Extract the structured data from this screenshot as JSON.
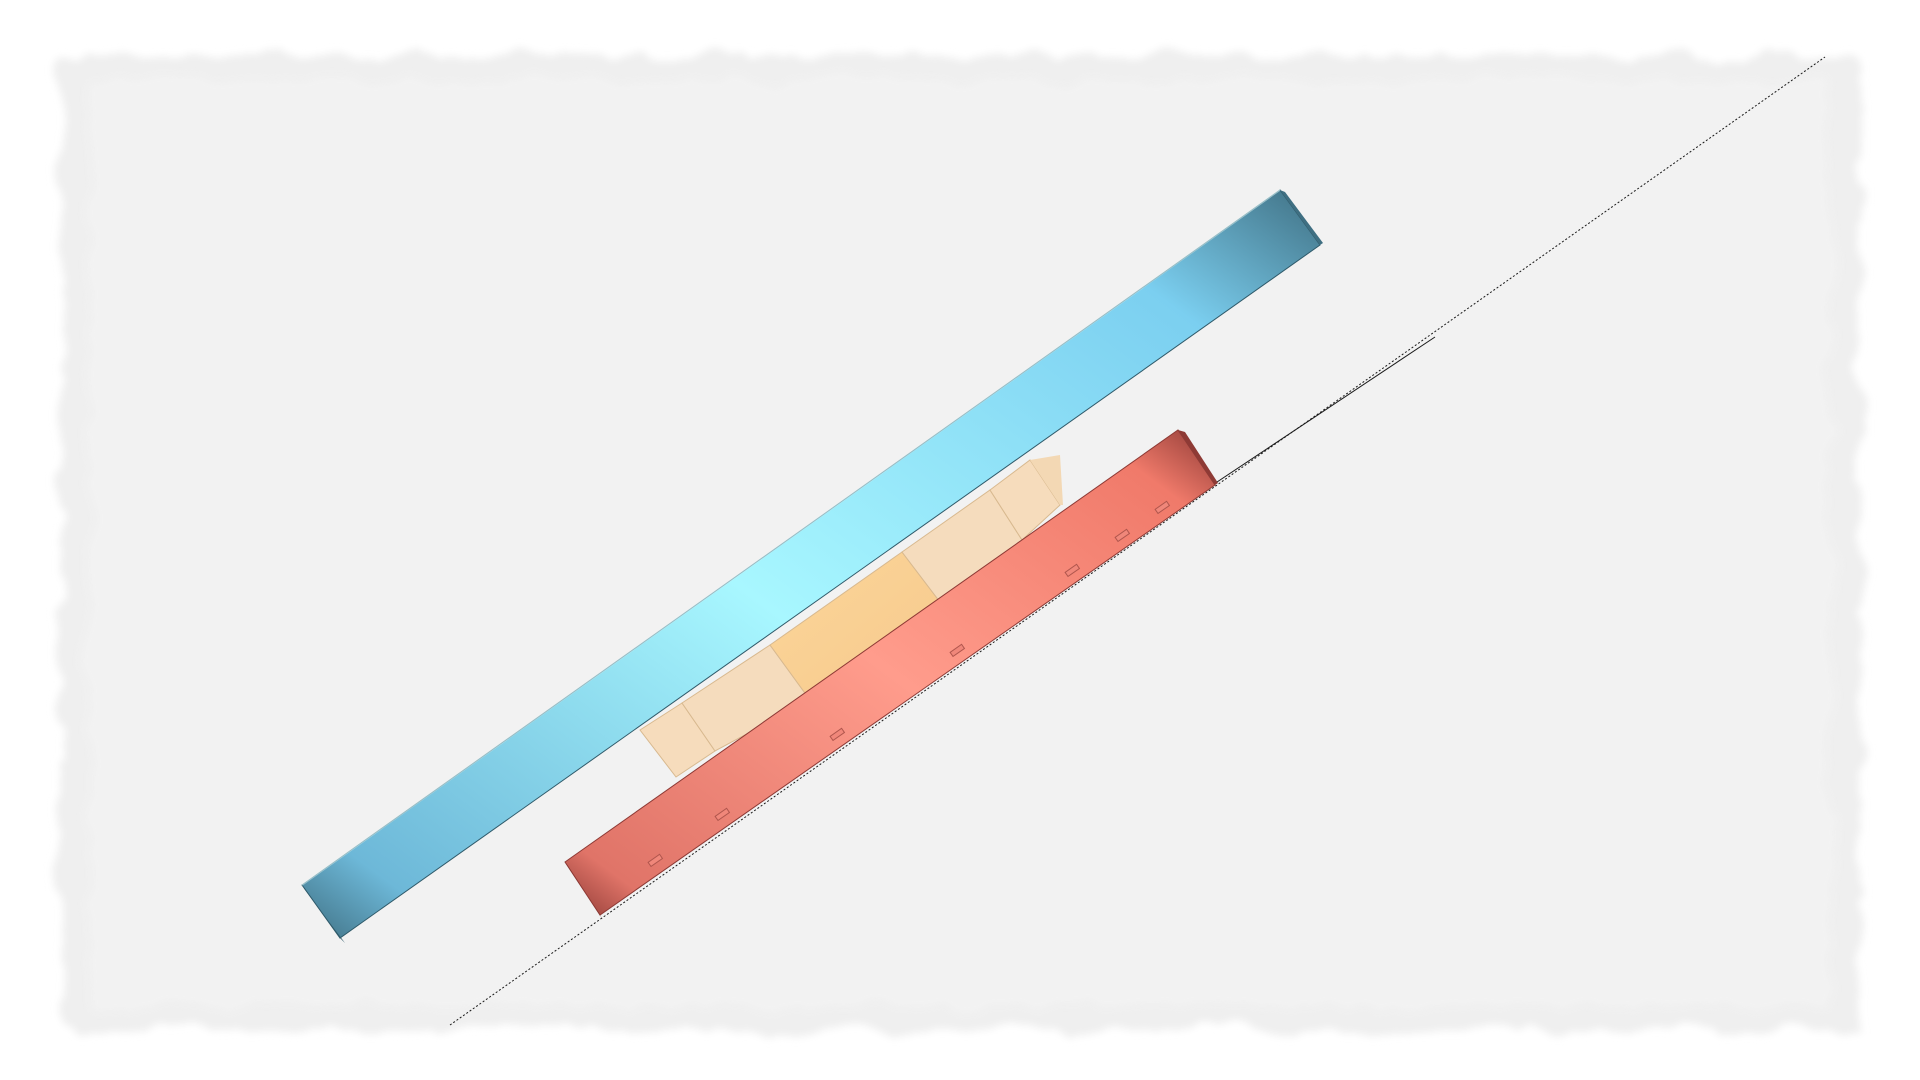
{
  "scene": {
    "colors": {
      "paper": "#f2f2f2",
      "blue_light": "#a8f7ff",
      "blue_mid": "#8fe0ff",
      "blue_dark": "#3f6f82",
      "red_light": "#ff9c8c",
      "red_mid": "#f4806f",
      "red_dark": "#8e3a35",
      "beige": "#f6dcbc",
      "beige_center": "#fbd69a",
      "line": "#1a1a1a"
    },
    "layers": [
      {
        "name": "blue-plate",
        "label": ""
      },
      {
        "name": "middle-blocks",
        "label": ""
      },
      {
        "name": "red-plate",
        "label": ""
      }
    ]
  }
}
